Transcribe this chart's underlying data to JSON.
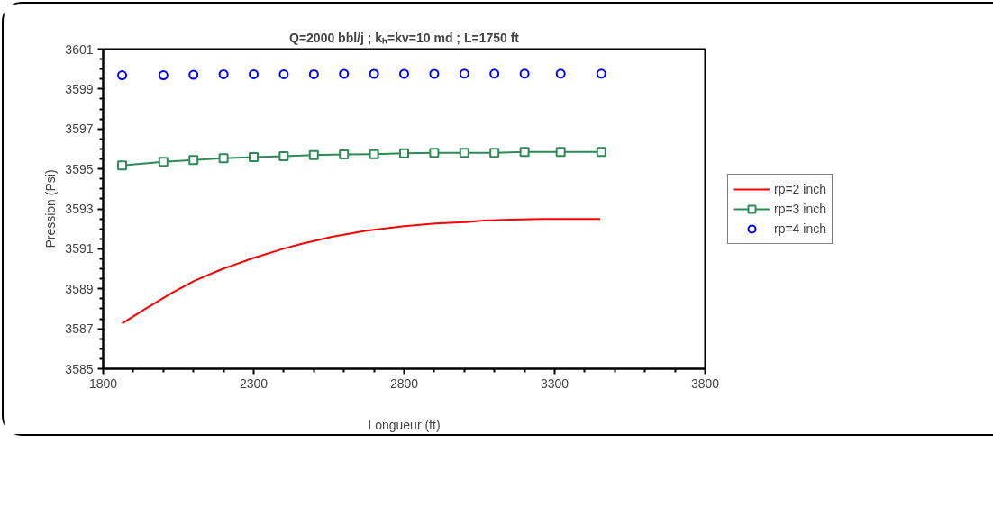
{
  "chart_data": {
    "type": "line",
    "title": "Q=2000 bbl/j ; kₕ=kv=10 md ; L=1750 ft",
    "xlabel": "Longueur (ft)",
    "ylabel": "Pression (Psi)",
    "xlim": [
      1800,
      3800
    ],
    "xticks": [
      1800,
      2300,
      2800,
      3300,
      3800
    ],
    "ylim": [
      3585,
      3601
    ],
    "yticks": [
      3585,
      3587,
      3589,
      3591,
      3593,
      3595,
      3597,
      3599,
      3601
    ],
    "grid": false,
    "legend": "right",
    "series": [
      {
        "name": "rp=2 inch",
        "color": "#ff0000",
        "marker": "none",
        "x": [
          1863,
          1937,
          2029,
          2103,
          2194,
          2297,
          2400,
          2457,
          2560,
          2674,
          2800,
          2903,
          3006,
          3063,
          3154,
          3257,
          3451
        ],
        "values": [
          3587.27,
          3587.97,
          3588.8,
          3589.4,
          3589.98,
          3590.53,
          3591.01,
          3591.24,
          3591.6,
          3591.91,
          3592.13,
          3592.27,
          3592.34,
          3592.41,
          3592.46,
          3592.49,
          3592.49
        ]
      },
      {
        "name": "rp=3 inch",
        "color": "#2e8b57",
        "marker": "square",
        "x": [
          1863,
          2000,
          2100,
          2200,
          2300,
          2400,
          2500,
          2600,
          2700,
          2800,
          2900,
          3000,
          3100,
          3200,
          3320,
          3455
        ],
        "values": [
          3595.18,
          3595.36,
          3595.45,
          3595.54,
          3595.59,
          3595.64,
          3595.69,
          3595.73,
          3595.74,
          3595.78,
          3595.81,
          3595.81,
          3595.81,
          3595.85,
          3595.85,
          3595.85
        ]
      },
      {
        "name": "rp=4 inch",
        "color": "#0000ff",
        "type": "scatter",
        "marker": "circle",
        "x": [
          1863,
          2000,
          2100,
          2200,
          2300,
          2400,
          2500,
          2600,
          2700,
          2800,
          2900,
          3000,
          3100,
          3200,
          3320,
          3455
        ],
        "values": [
          3599.69,
          3599.69,
          3599.71,
          3599.74,
          3599.74,
          3599.74,
          3599.74,
          3599.76,
          3599.76,
          3599.76,
          3599.76,
          3599.77,
          3599.77,
          3599.77,
          3599.77,
          3599.77
        ]
      }
    ]
  }
}
